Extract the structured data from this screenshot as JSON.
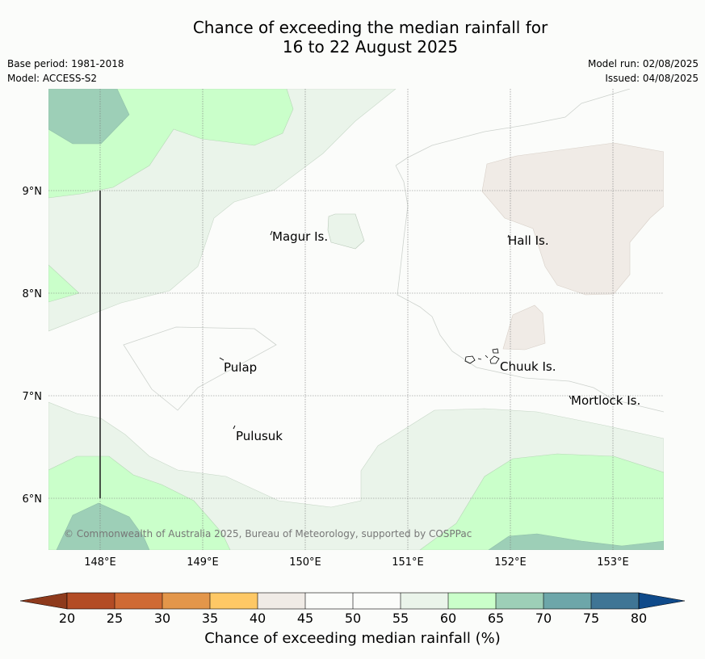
{
  "title_line1": "Chance of exceeding the median rainfall for",
  "title_line2": "16 to 22 August 2025",
  "meta": {
    "base_period": "Base period: 1981-2018",
    "model": "Model: ACCESS-S2",
    "model_run": "Model run: 02/08/2025",
    "issued": "Issued: 04/08/2025"
  },
  "map": {
    "lon_ticks": [
      "148°E",
      "149°E",
      "150°E",
      "151°E",
      "152°E",
      "153°E"
    ],
    "lat_ticks": [
      "9°N",
      "8°N",
      "7°N",
      "6°N"
    ],
    "place_labels": [
      {
        "name": "Magur Is."
      },
      {
        "name": "Hall Is."
      },
      {
        "name": "Pulap"
      },
      {
        "name": "Chuuk Is."
      },
      {
        "name": "Mortlock Is."
      },
      {
        "name": "Pulusuk"
      }
    ],
    "copyright": "© Commonwealth of Australia 2025, Bureau of Meteorology, supported by COSPPac"
  },
  "colorbar": {
    "title": "Chance of exceeding median rainfall (%)",
    "ticks": [
      "20",
      "25",
      "30",
      "35",
      "40",
      "45",
      "50",
      "55",
      "60",
      "65",
      "70",
      "75",
      "80"
    ],
    "colors": {
      "below20": "#8e3a1c",
      "20-25": "#b34c25",
      "25-30": "#cf6a34",
      "30-35": "#e3964a",
      "35-40": "#fec865",
      "40-45": "#f0ebe6",
      "45-50": "#fbfcfa",
      "50-55": "#fbfcfa",
      "55-60": "#eaf4ea",
      "60-65": "#caffca",
      "65-70": "#9dcfb7",
      "70-75": "#6da6a9",
      "75-80": "#3f7595",
      "above80": "#0f4a8a"
    }
  }
}
